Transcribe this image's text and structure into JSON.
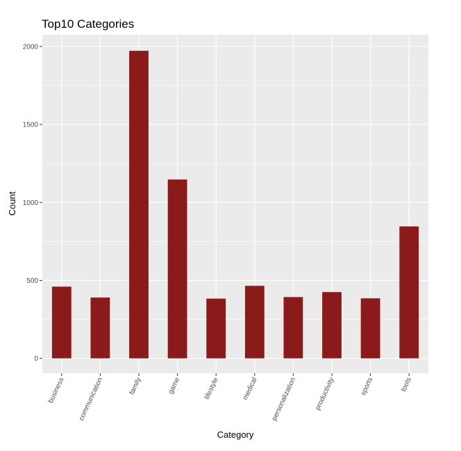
{
  "chart_data": {
    "type": "bar",
    "title": "Top10 Categories",
    "xlabel": "Category",
    "ylabel": "Count",
    "categories": [
      "business",
      "communication",
      "family",
      "game",
      "lifestyle",
      "medical",
      "personalization",
      "productivity",
      "sports",
      "tools"
    ],
    "values": [
      460,
      390,
      1972,
      1147,
      383,
      465,
      393,
      425,
      385,
      846
    ],
    "ylim": [
      -95,
      2075
    ],
    "yticks": [
      0,
      500,
      1000,
      1500,
      2000
    ],
    "grid": true,
    "bar_color": "#8B1A1A",
    "panel_color": "#EBEBEB",
    "grid_color": "#FFFFFF"
  }
}
